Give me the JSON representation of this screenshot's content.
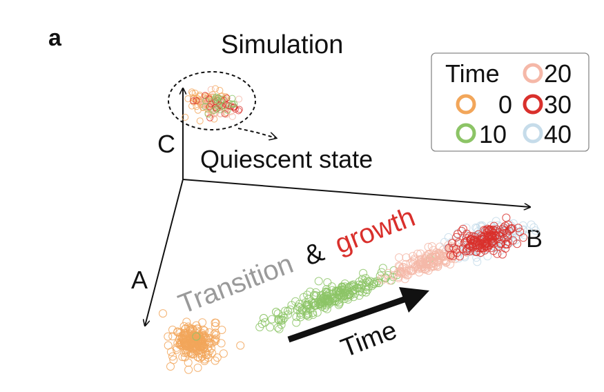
{
  "panel_label": "a",
  "title": "Simulation",
  "axes": {
    "a": "A",
    "b": "B",
    "c": "C"
  },
  "callout": "Quiescent state",
  "transition_text": {
    "part1": "Transition",
    "part2": "&",
    "part3": "growth"
  },
  "time_arrow_label": "Time",
  "legend": {
    "title": "Time",
    "entries": [
      {
        "label": "0",
        "color": "#f2a65a"
      },
      {
        "label": "20",
        "color": "#f5b8a8"
      },
      {
        "label": "30",
        "color": "#d9302c"
      },
      {
        "label": "10",
        "color": "#8cc466"
      },
      {
        "label": "40",
        "color": "#c6dcea"
      }
    ]
  },
  "colors": {
    "t0": "#f2a65a",
    "t10": "#8cc466",
    "t20": "#f5b8a8",
    "t30": "#d9302c",
    "t40": "#c6dcea",
    "transition_gray": "#9a9a9a",
    "growth_red": "#d9302c"
  }
}
